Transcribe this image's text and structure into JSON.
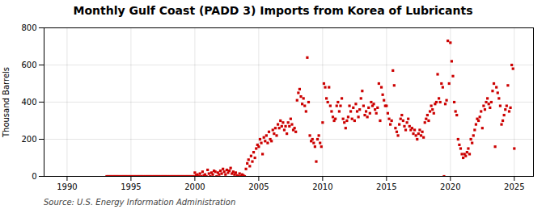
{
  "chart_data": {
    "type": "scatter",
    "title": "Monthly Gulf Coast (PADD 3) Imports from Korea of Lubricants",
    "ylabel": "Thousand Barrels",
    "annotations": [
      "Source: U.S. Energy Information Administration"
    ],
    "color": "#cc0000",
    "marker": "square",
    "grid": true,
    "xlim": [
      1988.2,
      2026.5
    ],
    "ylim": [
      0,
      800
    ],
    "xticks": [
      1990,
      1995,
      2000,
      2005,
      2010,
      2015,
      2020,
      2025
    ],
    "yticks": [
      0,
      200,
      400,
      600,
      800
    ],
    "x": [
      1993.1,
      1993.2,
      1993.3,
      1993.4,
      1993.5,
      1993.6,
      1993.7,
      1993.8,
      1993.9,
      1994.0,
      1994.1,
      1994.2,
      1994.3,
      1994.4,
      1994.5,
      1994.6,
      1994.7,
      1994.8,
      1994.9,
      1995.0,
      1995.1,
      1995.2,
      1995.3,
      1995.4,
      1995.5,
      1995.6,
      1995.7,
      1995.8,
      1995.9,
      1996.0,
      1996.1,
      1996.2,
      1996.3,
      1996.4,
      1996.5,
      1996.6,
      1996.7,
      1996.8,
      1996.9,
      1997.0,
      1997.1,
      1997.2,
      1997.3,
      1997.4,
      1997.5,
      1997.6,
      1997.7,
      1997.8,
      1997.9,
      1998.0,
      1998.1,
      1998.2,
      1998.3,
      1998.4,
      1998.5,
      1998.6,
      1998.7,
      1998.8,
      1998.9,
      1999.0,
      1999.1,
      1999.2,
      1999.3,
      1999.4,
      1999.5,
      1999.6,
      1999.7,
      1999.8,
      1999.9,
      2000.0,
      2000.1,
      2000.2,
      2000.3,
      2000.4,
      2000.5,
      2000.6,
      2000.7,
      2000.8,
      2000.9,
      2001.0,
      2001.1,
      2001.2,
      2001.3,
      2001.4,
      2001.5,
      2001.6,
      2001.7,
      2001.8,
      2001.9,
      2002.0,
      2002.1,
      2002.2,
      2002.3,
      2002.4,
      2002.5,
      2002.6,
      2002.7,
      2002.8,
      2002.9,
      2003.0,
      2003.1,
      2003.2,
      2003.3,
      2003.4,
      2003.5,
      2003.6,
      2003.7,
      2003.8,
      2003.9,
      2004.0,
      2004.1,
      2004.2,
      2004.3,
      2004.4,
      2004.5,
      2004.6,
      2004.7,
      2004.8,
      2004.9,
      2005.0,
      2005.1,
      2005.2,
      2005.3,
      2005.4,
      2005.5,
      2005.6,
      2005.7,
      2005.8,
      2005.9,
      2006.0,
      2006.1,
      2006.2,
      2006.3,
      2006.4,
      2006.5,
      2006.6,
      2006.7,
      2006.8,
      2006.9,
      2007.0,
      2007.1,
      2007.2,
      2007.3,
      2007.4,
      2007.5,
      2007.6,
      2007.7,
      2007.8,
      2007.9,
      2008.0,
      2008.1,
      2008.2,
      2008.3,
      2008.4,
      2008.5,
      2008.6,
      2008.7,
      2008.8,
      2008.9,
      2009.0,
      2009.1,
      2009.2,
      2009.3,
      2009.4,
      2009.5,
      2009.6,
      2009.7,
      2009.8,
      2009.9,
      2010.0,
      2010.1,
      2010.2,
      2010.3,
      2010.4,
      2010.5,
      2010.6,
      2010.7,
      2010.8,
      2010.9,
      2011.0,
      2011.1,
      2011.2,
      2011.3,
      2011.4,
      2011.5,
      2011.6,
      2011.7,
      2011.8,
      2011.9,
      2012.0,
      2012.1,
      2012.2,
      2012.3,
      2012.4,
      2012.5,
      2012.6,
      2012.7,
      2012.8,
      2012.9,
      2013.0,
      2013.1,
      2013.2,
      2013.3,
      2013.4,
      2013.5,
      2013.6,
      2013.7,
      2013.8,
      2013.9,
      2014.0,
      2014.1,
      2014.2,
      2014.3,
      2014.4,
      2014.5,
      2014.6,
      2014.7,
      2014.8,
      2014.9,
      2015.0,
      2015.1,
      2015.2,
      2015.3,
      2015.4,
      2015.5,
      2015.6,
      2015.7,
      2015.8,
      2015.9,
      2016.0,
      2016.1,
      2016.2,
      2016.3,
      2016.4,
      2016.5,
      2016.6,
      2016.7,
      2016.8,
      2016.9,
      2017.0,
      2017.1,
      2017.2,
      2017.3,
      2017.4,
      2017.5,
      2017.6,
      2017.7,
      2017.8,
      2017.9,
      2018.0,
      2018.1,
      2018.2,
      2018.3,
      2018.4,
      2018.5,
      2018.6,
      2018.7,
      2018.8,
      2018.9,
      2019.0,
      2019.1,
      2019.2,
      2019.3,
      2019.4,
      2019.5,
      2019.6,
      2019.7,
      2019.8,
      2019.9,
      2020.0,
      2020.1,
      2020.2,
      2020.3,
      2020.4,
      2020.5,
      2020.6,
      2020.7,
      2020.8,
      2020.9,
      2021.0,
      2021.1,
      2021.2,
      2021.3,
      2021.4,
      2021.5,
      2021.6,
      2021.7,
      2021.8,
      2021.9,
      2022.0,
      2022.1,
      2022.2,
      2022.3,
      2022.4,
      2022.5,
      2022.6,
      2022.7,
      2022.8,
      2022.9,
      2023.0,
      2023.1,
      2023.2,
      2023.3,
      2023.4,
      2023.5,
      2023.6,
      2023.7,
      2023.8,
      2023.9,
      2024.0,
      2024.1,
      2024.2,
      2024.3,
      2024.4,
      2024.5,
      2024.6,
      2024.7,
      2024.8,
      2024.9,
      2025.0
    ],
    "values": [
      0,
      0,
      0,
      0,
      0,
      0,
      0,
      0,
      0,
      0,
      0,
      0,
      0,
      0,
      0,
      0,
      0,
      0,
      0,
      0,
      0,
      0,
      0,
      0,
      0,
      0,
      0,
      0,
      0,
      0,
      0,
      0,
      0,
      0,
      0,
      0,
      0,
      0,
      0,
      0,
      0,
      0,
      0,
      0,
      0,
      0,
      0,
      0,
      0,
      0,
      0,
      0,
      0,
      0,
      0,
      0,
      0,
      0,
      0,
      0,
      0,
      0,
      0,
      0,
      0,
      0,
      0,
      0,
      0,
      20,
      5,
      10,
      0,
      15,
      0,
      25,
      5,
      10,
      0,
      35,
      15,
      0,
      20,
      10,
      30,
      25,
      0,
      20,
      10,
      30,
      15,
      40,
      25,
      10,
      35,
      20,
      30,
      45,
      15,
      25,
      10,
      20,
      5,
      0,
      15,
      0,
      10,
      5,
      0,
      40,
      70,
      90,
      55,
      110,
      80,
      130,
      100,
      150,
      170,
      160,
      200,
      180,
      120,
      210,
      190,
      220,
      180,
      240,
      200,
      190,
      250,
      230,
      260,
      220,
      280,
      260,
      300,
      270,
      290,
      250,
      270,
      230,
      290,
      270,
      310,
      280,
      250,
      260,
      240,
      410,
      450,
      470,
      430,
      390,
      420,
      380,
      350,
      640,
      400,
      220,
      190,
      200,
      180,
      160,
      80,
      200,
      220,
      180,
      160,
      290,
      500,
      480,
      420,
      400,
      480,
      380,
      350,
      320,
      300,
      310,
      380,
      400,
      350,
      380,
      420,
      310,
      290,
      260,
      300,
      320,
      380,
      350,
      310,
      370,
      300,
      390,
      350,
      320,
      360,
      420,
      460,
      380,
      330,
      350,
      320,
      370,
      340,
      400,
      380,
      390,
      360,
      340,
      370,
      500,
      300,
      480,
      440,
      410,
      380,
      380,
      340,
      310,
      280,
      300,
      570,
      490,
      260,
      240,
      220,
      280,
      310,
      330,
      300,
      270,
      250,
      290,
      310,
      270,
      250,
      260,
      230,
      250,
      220,
      200,
      230,
      250,
      220,
      240,
      210,
      290,
      310,
      330,
      300,
      350,
      380,
      360,
      340,
      390,
      400,
      550,
      420,
      400,
      500,
      480,
      0,
      390,
      410,
      730,
      500,
      720,
      620,
      540,
      400,
      350,
      330,
      200,
      170,
      150,
      120,
      100,
      120,
      110,
      130,
      150,
      120,
      200,
      180,
      220,
      250,
      280,
      310,
      300,
      320,
      350,
      260,
      380,
      360,
      400,
      420,
      390,
      370,
      400,
      460,
      500,
      160,
      480,
      450,
      420,
      380,
      280,
      300,
      330,
      360,
      380,
      490,
      350,
      370,
      600,
      580,
      150
    ]
  }
}
